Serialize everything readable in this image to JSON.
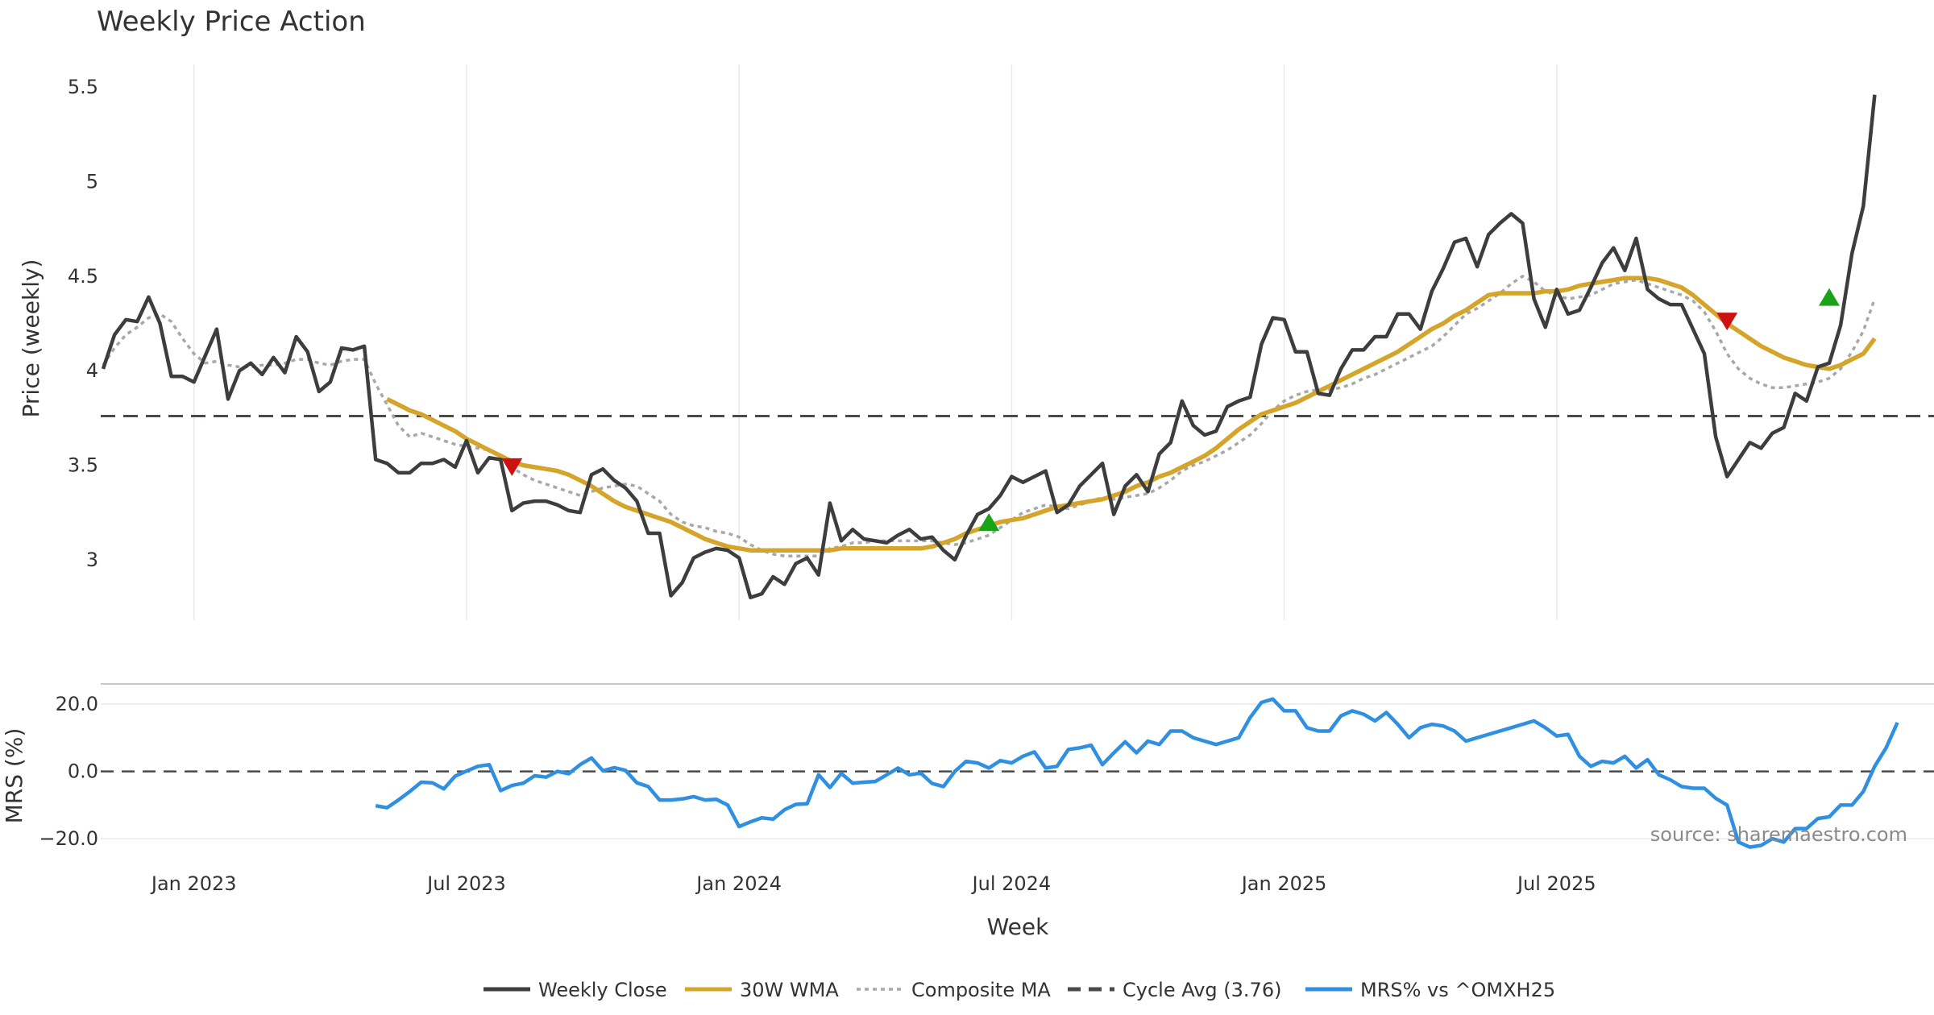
{
  "colors": {
    "close": "#3d3d3d",
    "wma": "#d4a52a",
    "composite": "#a8a8a8",
    "cycle": "#4a4a4a",
    "mrs": "#2f8fe0",
    "buy": "#1aa31a",
    "sell": "#cc1111",
    "grid": "#e6eaee"
  },
  "chart_data": [
    {
      "type": "line",
      "title": "Weekly Price Action",
      "ylabel": "Price (weekly)",
      "ylim": [
        2.68,
        5.62
      ],
      "yticks": [
        3,
        3.5,
        4,
        4.5,
        5,
        5.5
      ],
      "ytick_labels": [
        "3",
        "3.5",
        "4",
        "4.5",
        "5",
        "5.5"
      ],
      "week_range": [
        0,
        152
      ],
      "series": [
        {
          "name": "Weekly Close",
          "start_week": 0,
          "values": [
            4.01,
            4.19,
            4.27,
            4.26,
            4.39,
            4.25,
            3.97,
            3.97,
            3.94,
            4.08,
            4.22,
            3.85,
            4.0,
            4.04,
            3.98,
            4.07,
            3.99,
            4.18,
            4.1,
            3.89,
            3.94,
            4.12,
            4.11,
            4.13,
            3.53,
            3.51,
            3.46,
            3.46,
            3.51,
            3.51,
            3.53,
            3.49,
            3.63,
            3.46,
            3.54,
            3.53,
            3.26,
            3.3,
            3.31,
            3.31,
            3.29,
            3.26,
            3.25,
            3.45,
            3.48,
            3.42,
            3.38,
            3.31,
            3.14,
            3.14,
            2.81,
            2.88,
            3.01,
            3.04,
            3.06,
            3.05,
            3.01,
            2.8,
            2.82,
            2.91,
            2.87,
            2.98,
            3.01,
            2.92,
            3.3,
            3.1,
            3.16,
            3.11,
            3.1,
            3.09,
            3.13,
            3.16,
            3.11,
            3.12,
            3.05,
            3.0,
            3.13,
            3.24,
            3.27,
            3.34,
            3.44,
            3.41,
            3.44,
            3.47,
            3.25,
            3.29,
            3.39,
            3.45,
            3.51,
            3.24,
            3.39,
            3.45,
            3.36,
            3.56,
            3.62,
            3.84,
            3.71,
            3.66,
            3.68,
            3.81,
            3.84,
            3.86,
            4.14,
            4.28,
            4.27,
            4.1,
            4.1,
            3.88,
            3.87,
            4.01,
            4.11,
            4.11,
            4.18,
            4.18,
            4.3,
            4.3,
            4.22,
            4.42,
            4.54,
            4.68,
            4.7,
            4.55,
            4.72,
            4.78,
            4.83,
            4.78,
            4.38,
            4.23,
            4.43,
            4.3,
            4.32,
            4.44,
            4.57,
            4.65,
            4.53,
            4.7,
            4.43,
            4.38,
            4.35,
            4.35,
            4.22,
            4.09,
            3.65,
            3.44,
            3.53,
            3.62,
            3.59,
            3.67,
            3.7,
            3.88,
            3.84,
            4.02,
            4.04,
            4.24,
            4.62,
            4.87,
            5.46
          ]
        },
        {
          "name": "30W WMA",
          "start_week": 25,
          "values": [
            3.85,
            3.82,
            3.79,
            3.77,
            3.74,
            3.71,
            3.68,
            3.64,
            3.61,
            3.58,
            3.55,
            3.52,
            3.5,
            3.49,
            3.48,
            3.47,
            3.45,
            3.42,
            3.39,
            3.35,
            3.31,
            3.28,
            3.26,
            3.24,
            3.22,
            3.2,
            3.17,
            3.14,
            3.11,
            3.09,
            3.07,
            3.06,
            3.05,
            3.05,
            3.05,
            3.05,
            3.05,
            3.05,
            3.05,
            3.05,
            3.06,
            3.06,
            3.06,
            3.06,
            3.06,
            3.06,
            3.06,
            3.06,
            3.07,
            3.09,
            3.11,
            3.14,
            3.16,
            3.18,
            3.2,
            3.21,
            3.22,
            3.24,
            3.26,
            3.28,
            3.29,
            3.3,
            3.31,
            3.32,
            3.34,
            3.36,
            3.39,
            3.41,
            3.44,
            3.46,
            3.49,
            3.52,
            3.55,
            3.59,
            3.64,
            3.69,
            3.73,
            3.77,
            3.79,
            3.81,
            3.83,
            3.86,
            3.89,
            3.92,
            3.95,
            3.98,
            4.01,
            4.04,
            4.07,
            4.1,
            4.14,
            4.18,
            4.22,
            4.25,
            4.29,
            4.32,
            4.36,
            4.4,
            4.41,
            4.41,
            4.41,
            4.41,
            4.42,
            4.42,
            4.43,
            4.45,
            4.46,
            4.47,
            4.48,
            4.49,
            4.49,
            4.49,
            4.48,
            4.46,
            4.44,
            4.4,
            4.35,
            4.3,
            4.25,
            4.21,
            4.17,
            4.13,
            4.1,
            4.07,
            4.05,
            4.03,
            4.02,
            4.01,
            4.03,
            4.06,
            4.09,
            4.17
          ]
        },
        {
          "name": "Composite MA",
          "start_week": 0,
          "values": [
            4.03,
            4.12,
            4.19,
            4.23,
            4.28,
            4.3,
            4.26,
            4.17,
            4.09,
            4.04,
            4.05,
            4.03,
            4.02,
            4.02,
            4.03,
            4.03,
            4.04,
            4.06,
            4.06,
            4.04,
            4.03,
            4.05,
            4.06,
            4.06,
            3.93,
            3.82,
            3.71,
            3.65,
            3.67,
            3.65,
            3.63,
            3.61,
            3.6,
            3.59,
            3.58,
            3.55,
            3.49,
            3.45,
            3.42,
            3.4,
            3.38,
            3.36,
            3.34,
            3.36,
            3.38,
            3.39,
            3.4,
            3.39,
            3.35,
            3.31,
            3.24,
            3.2,
            3.18,
            3.17,
            3.15,
            3.14,
            3.12,
            3.08,
            3.05,
            3.03,
            3.02,
            3.02,
            3.02,
            3.02,
            3.06,
            3.07,
            3.09,
            3.09,
            3.1,
            3.1,
            3.1,
            3.1,
            3.1,
            3.1,
            3.09,
            3.08,
            3.09,
            3.11,
            3.13,
            3.17,
            3.21,
            3.25,
            3.27,
            3.29,
            3.28,
            3.27,
            3.29,
            3.31,
            3.33,
            3.32,
            3.33,
            3.34,
            3.35,
            3.38,
            3.42,
            3.47,
            3.5,
            3.52,
            3.55,
            3.58,
            3.62,
            3.66,
            3.72,
            3.79,
            3.84,
            3.87,
            3.89,
            3.9,
            3.9,
            3.91,
            3.93,
            3.96,
            3.98,
            4.01,
            4.04,
            4.07,
            4.1,
            4.13,
            4.18,
            4.24,
            4.3,
            4.33,
            4.37,
            4.41,
            4.46,
            4.5,
            4.47,
            4.42,
            4.4,
            4.38,
            4.39,
            4.4,
            4.43,
            4.46,
            4.47,
            4.48,
            4.46,
            4.44,
            4.42,
            4.4,
            4.37,
            4.31,
            4.21,
            4.09,
            4.01,
            3.96,
            3.93,
            3.91,
            3.91,
            3.92,
            3.93,
            3.94,
            3.96,
            4.01,
            4.1,
            4.21,
            4.38
          ]
        },
        {
          "name": "Cycle Avg (3.76)",
          "value": 3.76
        }
      ],
      "signals": [
        {
          "type": "sell",
          "week": 36,
          "price": 3.49
        },
        {
          "type": "buy",
          "week": 78,
          "price": 3.2
        },
        {
          "type": "sell",
          "week": 143,
          "price": 4.26
        },
        {
          "type": "buy",
          "week": 152,
          "price": 4.39
        }
      ]
    },
    {
      "type": "line",
      "xlabel": "Week",
      "ylabel": "MRS (%)",
      "ylim": [
        -25,
        26
      ],
      "yticks": [
        -20,
        0,
        20
      ],
      "ytick_labels": [
        "−20.0",
        "0.0",
        "20.0"
      ],
      "reference_line": 0,
      "week_range": [
        0,
        152
      ],
      "series": [
        {
          "name": "MRS% vs ^OMXH25",
          "start_week": 24,
          "values": [
            -10.2,
            -10.8,
            -8.5,
            -6.0,
            -3.2,
            -3.4,
            -5.2,
            -1.4,
            0.1,
            1.5,
            2.0,
            -5.7,
            -4.2,
            -3.5,
            -1.3,
            -1.7,
            0.0,
            -0.7,
            2.0,
            4.0,
            0.2,
            1.1,
            0.3,
            -3.4,
            -4.5,
            -8.5,
            -8.5,
            -8.2,
            -7.5,
            -8.5,
            -8.3,
            -10.0,
            -16.4,
            -15.0,
            -13.8,
            -14.2,
            -11.4,
            -9.8,
            -9.6,
            -1.0,
            -4.8,
            -0.6,
            -3.5,
            -3.2,
            -3.0,
            -1.0,
            1.0,
            -1.0,
            -0.5,
            -3.6,
            -4.5,
            0.0,
            3.0,
            2.5,
            1.0,
            3.2,
            2.5,
            4.5,
            5.8,
            1.0,
            1.5,
            6.5,
            7.0,
            7.8,
            2.0,
            5.5,
            8.8,
            5.5,
            9.0,
            8.0,
            12.0,
            12.0,
            10.0,
            9.0,
            8.0,
            9.0,
            10.0,
            16.0,
            20.5,
            21.5,
            18.0,
            18.0,
            13.0,
            12.0,
            12.0,
            16.5,
            18.0,
            17.0,
            15.0,
            17.5,
            14.0,
            10.0,
            13.0,
            14.0,
            13.5,
            12.0,
            9.0,
            10.0,
            11.0,
            12.0,
            13.0,
            14.0,
            15.0,
            13.0,
            10.5,
            11.0,
            4.5,
            1.5,
            3.0,
            2.5,
            4.5,
            1.0,
            3.5,
            -1.0,
            -2.5,
            -4.5,
            -5.0,
            -5.0,
            -8.0,
            -10.0,
            -21.0,
            -22.5,
            -22.0,
            -20.0,
            -21.0,
            -17.0,
            -17.0,
            -14.0,
            -13.5,
            -10.0,
            -10.0,
            -6.0,
            1.5,
            7.0,
            14.5
          ]
        }
      ]
    }
  ],
  "x_axis": {
    "label": "Week",
    "ticks": [
      {
        "label": "Jan 2023",
        "week": 8
      },
      {
        "label": "Jul 2023",
        "week": 32
      },
      {
        "label": "Jan 2024",
        "week": 56
      },
      {
        "label": "Jul 2024",
        "week": 80
      },
      {
        "label": "Jan 2025",
        "week": 104
      },
      {
        "label": "Jul 2025",
        "week": 128
      }
    ]
  },
  "legend": {
    "position": "bottom-center",
    "items": [
      {
        "label": "Weekly Close",
        "key": "close",
        "style": "solid"
      },
      {
        "label": "30W WMA",
        "key": "wma",
        "style": "solid"
      },
      {
        "label": "Composite MA",
        "key": "composite",
        "style": "dotted"
      },
      {
        "label": "Cycle Avg (3.76)",
        "key": "cycle",
        "style": "dashed"
      },
      {
        "label": "MRS% vs ^OMXH25",
        "key": "mrs",
        "style": "solid"
      }
    ]
  },
  "source_note": "source: sharemaestro.com"
}
